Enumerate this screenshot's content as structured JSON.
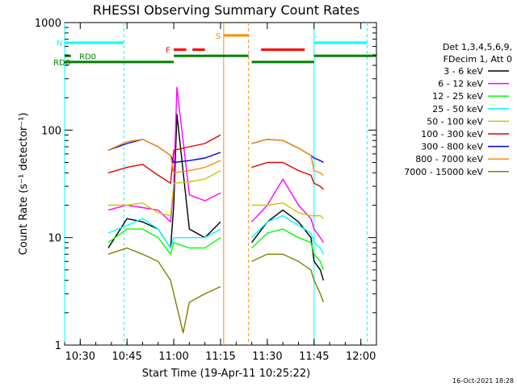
{
  "chart_data": {
    "type": "line",
    "title": "RHESSI Observing Summary Count Rates",
    "xlabel": "Start Time (19-Apr-11 10:25:22)",
    "ylabel": "Count Rate (s⁻¹ detector⁻¹)",
    "x_range": [
      "10:25",
      "12:05"
    ],
    "ylim": [
      1,
      1000
    ],
    "y_scale": "log",
    "grid": false,
    "x_ticks": [
      "10:30",
      "10:45",
      "11:00",
      "11:15",
      "11:30",
      "11:45",
      "12:00"
    ],
    "y_ticks": [
      "1",
      "10",
      "100",
      "1000"
    ],
    "legend": {
      "placement": "right",
      "header": [
        "Det 1,3,4,5,6,9,",
        "FDecim 1, Att 0"
      ]
    },
    "series": [
      {
        "name": "3 - 6 keV",
        "color": "#000000",
        "x": [
          "10:39",
          "10:45",
          "10:50",
          "10:55",
          "10:59",
          "11:00",
          "11:01",
          "11:05",
          "11:10",
          "11:15",
          "11:25",
          "11:30",
          "11:35",
          "11:40",
          "11:44",
          "11:45",
          "11:47",
          "11:48"
        ],
        "values": [
          8,
          15,
          14,
          12,
          8,
          20,
          140,
          12,
          10,
          14,
          9,
          14,
          18,
          14,
          10,
          6,
          5,
          4
        ]
      },
      {
        "name": "6 - 12 keV",
        "color": "#ff00ff",
        "x": [
          "10:39",
          "10:45",
          "10:50",
          "10:55",
          "10:59",
          "11:00",
          "11:01",
          "11:05",
          "11:10",
          "11:15",
          "11:25",
          "11:30",
          "11:35",
          "11:40",
          "11:44",
          "11:45",
          "11:47",
          "11:48"
        ],
        "values": [
          18,
          20,
          19,
          18,
          14,
          30,
          250,
          25,
          22,
          26,
          14,
          20,
          35,
          20,
          15,
          12,
          10,
          9
        ]
      },
      {
        "name": "12 - 25 keV",
        "color": "#00ff00",
        "x": [
          "10:39",
          "10:45",
          "10:50",
          "10:55",
          "10:59",
          "11:00",
          "11:05",
          "11:10",
          "11:15",
          "11:25",
          "11:30",
          "11:35",
          "11:40",
          "11:44",
          "11:45",
          "11:47",
          "11:48"
        ],
        "values": [
          9,
          12,
          12,
          10,
          7,
          9,
          8,
          8,
          10,
          8,
          11,
          12,
          10,
          9,
          7,
          6,
          5
        ]
      },
      {
        "name": "25 - 50 keV",
        "color": "#00ffff",
        "x": [
          "10:39",
          "10:45",
          "10:50",
          "10:55",
          "10:59",
          "11:00",
          "11:05",
          "11:10",
          "11:15",
          "11:25",
          "11:30",
          "11:35",
          "11:40",
          "11:44",
          "11:45",
          "11:47",
          "11:48"
        ],
        "values": [
          11,
          13,
          15,
          12,
          8,
          10,
          10,
          10,
          12,
          10,
          14,
          16,
          13,
          11,
          9,
          8,
          7
        ]
      },
      {
        "name": "50 - 100 keV",
        "color": "#c8c800",
        "x": [
          "10:39",
          "10:45",
          "10:50",
          "10:55",
          "10:59",
          "11:00",
          "11:05",
          "11:10",
          "11:15",
          "11:25",
          "11:30",
          "11:35",
          "11:40",
          "11:44",
          "11:45",
          "11:47",
          "11:48"
        ],
        "values": [
          20,
          20,
          21,
          17,
          16,
          32,
          33,
          35,
          42,
          20,
          20,
          21,
          17,
          16,
          16,
          16,
          15
        ]
      },
      {
        "name": "100 - 300 keV",
        "color": "#e00000",
        "x": [
          "10:39",
          "10:45",
          "10:50",
          "10:55",
          "10:59",
          "11:00",
          "11:05",
          "11:10",
          "11:15",
          "11:25",
          "11:30",
          "11:35",
          "11:40",
          "11:44",
          "11:45",
          "11:47",
          "11:48"
        ],
        "values": [
          40,
          45,
          48,
          38,
          32,
          65,
          70,
          75,
          90,
          45,
          50,
          50,
          42,
          38,
          32,
          30,
          28
        ]
      },
      {
        "name": "300 - 800 keV",
        "color": "#0000e0",
        "x": [
          "10:39",
          "10:45",
          "10:50",
          "10:55",
          "10:59",
          "11:00",
          "11:05",
          "11:10",
          "11:15",
          "11:25",
          "11:30",
          "11:35",
          "11:40",
          "11:44",
          "11:45",
          "11:47",
          "11:48"
        ],
        "values": [
          65,
          75,
          82,
          70,
          58,
          50,
          52,
          55,
          62,
          75,
          82,
          80,
          68,
          58,
          55,
          52,
          50
        ]
      },
      {
        "name": "800 - 7000 keV",
        "color": "#ff8c00",
        "x": [
          "10:39",
          "10:45",
          "10:50",
          "10:55",
          "10:59",
          "11:00",
          "11:05",
          "11:10",
          "11:15",
          "11:25",
          "11:30",
          "11:35",
          "11:40",
          "11:44",
          "11:45",
          "11:47",
          "11:48"
        ],
        "values": [
          65,
          78,
          82,
          70,
          58,
          40,
          42,
          45,
          52,
          75,
          82,
          80,
          68,
          58,
          42,
          40,
          38
        ]
      },
      {
        "name": "7000 - 15000 keV",
        "color": "#808000",
        "x": [
          "10:39",
          "10:45",
          "10:50",
          "10:55",
          "10:59",
          "11:00",
          "11:03",
          "11:05",
          "11:10",
          "11:15",
          "11:25",
          "11:30",
          "11:35",
          "11:40",
          "11:44",
          "11:45",
          "11:47",
          "11:48"
        ],
        "values": [
          7,
          8,
          7,
          6,
          4,
          3,
          1.3,
          2.5,
          3,
          3.5,
          6,
          7,
          7,
          6,
          5,
          4,
          3,
          2.5
        ]
      }
    ],
    "state_bars": [
      {
        "label": "N",
        "color": "#00ffff",
        "level": 650,
        "segments": [
          [
            "10:25",
            "10:44"
          ],
          [
            "11:45",
            "12:02"
          ]
        ]
      },
      {
        "label": "F",
        "color": "#ff0000",
        "level": 560,
        "segments": [
          [
            "11:00",
            "11:04"
          ],
          [
            "11:06",
            "11:10"
          ],
          [
            "11:28",
            "11:42"
          ]
        ]
      },
      {
        "label": "S",
        "color": "#ff8c00",
        "level": 760,
        "segments": [
          [
            "11:16",
            "11:24"
          ]
        ]
      },
      {
        "label": "RD0",
        "color": "#007f00",
        "level": 490,
        "segments": [
          [
            "10:25",
            "10:27"
          ],
          [
            "11:00",
            "11:24"
          ],
          [
            "11:45",
            "12:05"
          ]
        ]
      },
      {
        "label": "RD6",
        "color": "#007f00",
        "level": 430,
        "segments": [
          [
            "10:25",
            "11:00"
          ],
          [
            "11:25",
            "11:45"
          ]
        ]
      }
    ],
    "markers": [
      {
        "time": "10:25",
        "color": "#00ffff",
        "style": "solid"
      },
      {
        "time": "10:44",
        "color": "#00ffff",
        "style": "dashed"
      },
      {
        "time": "11:16",
        "color": "#ff8c00",
        "style": "solid"
      },
      {
        "time": "11:24",
        "color": "#ff8c00",
        "style": "dashed"
      },
      {
        "time": "11:45",
        "color": "#00ffff",
        "style": "solid"
      },
      {
        "time": "12:02",
        "color": "#00ffff",
        "style": "dashed"
      }
    ],
    "data_gaps": [
      [
        "11:16",
        "11:24"
      ]
    ],
    "footer_date": "16-Oct-2021 18:28"
  }
}
